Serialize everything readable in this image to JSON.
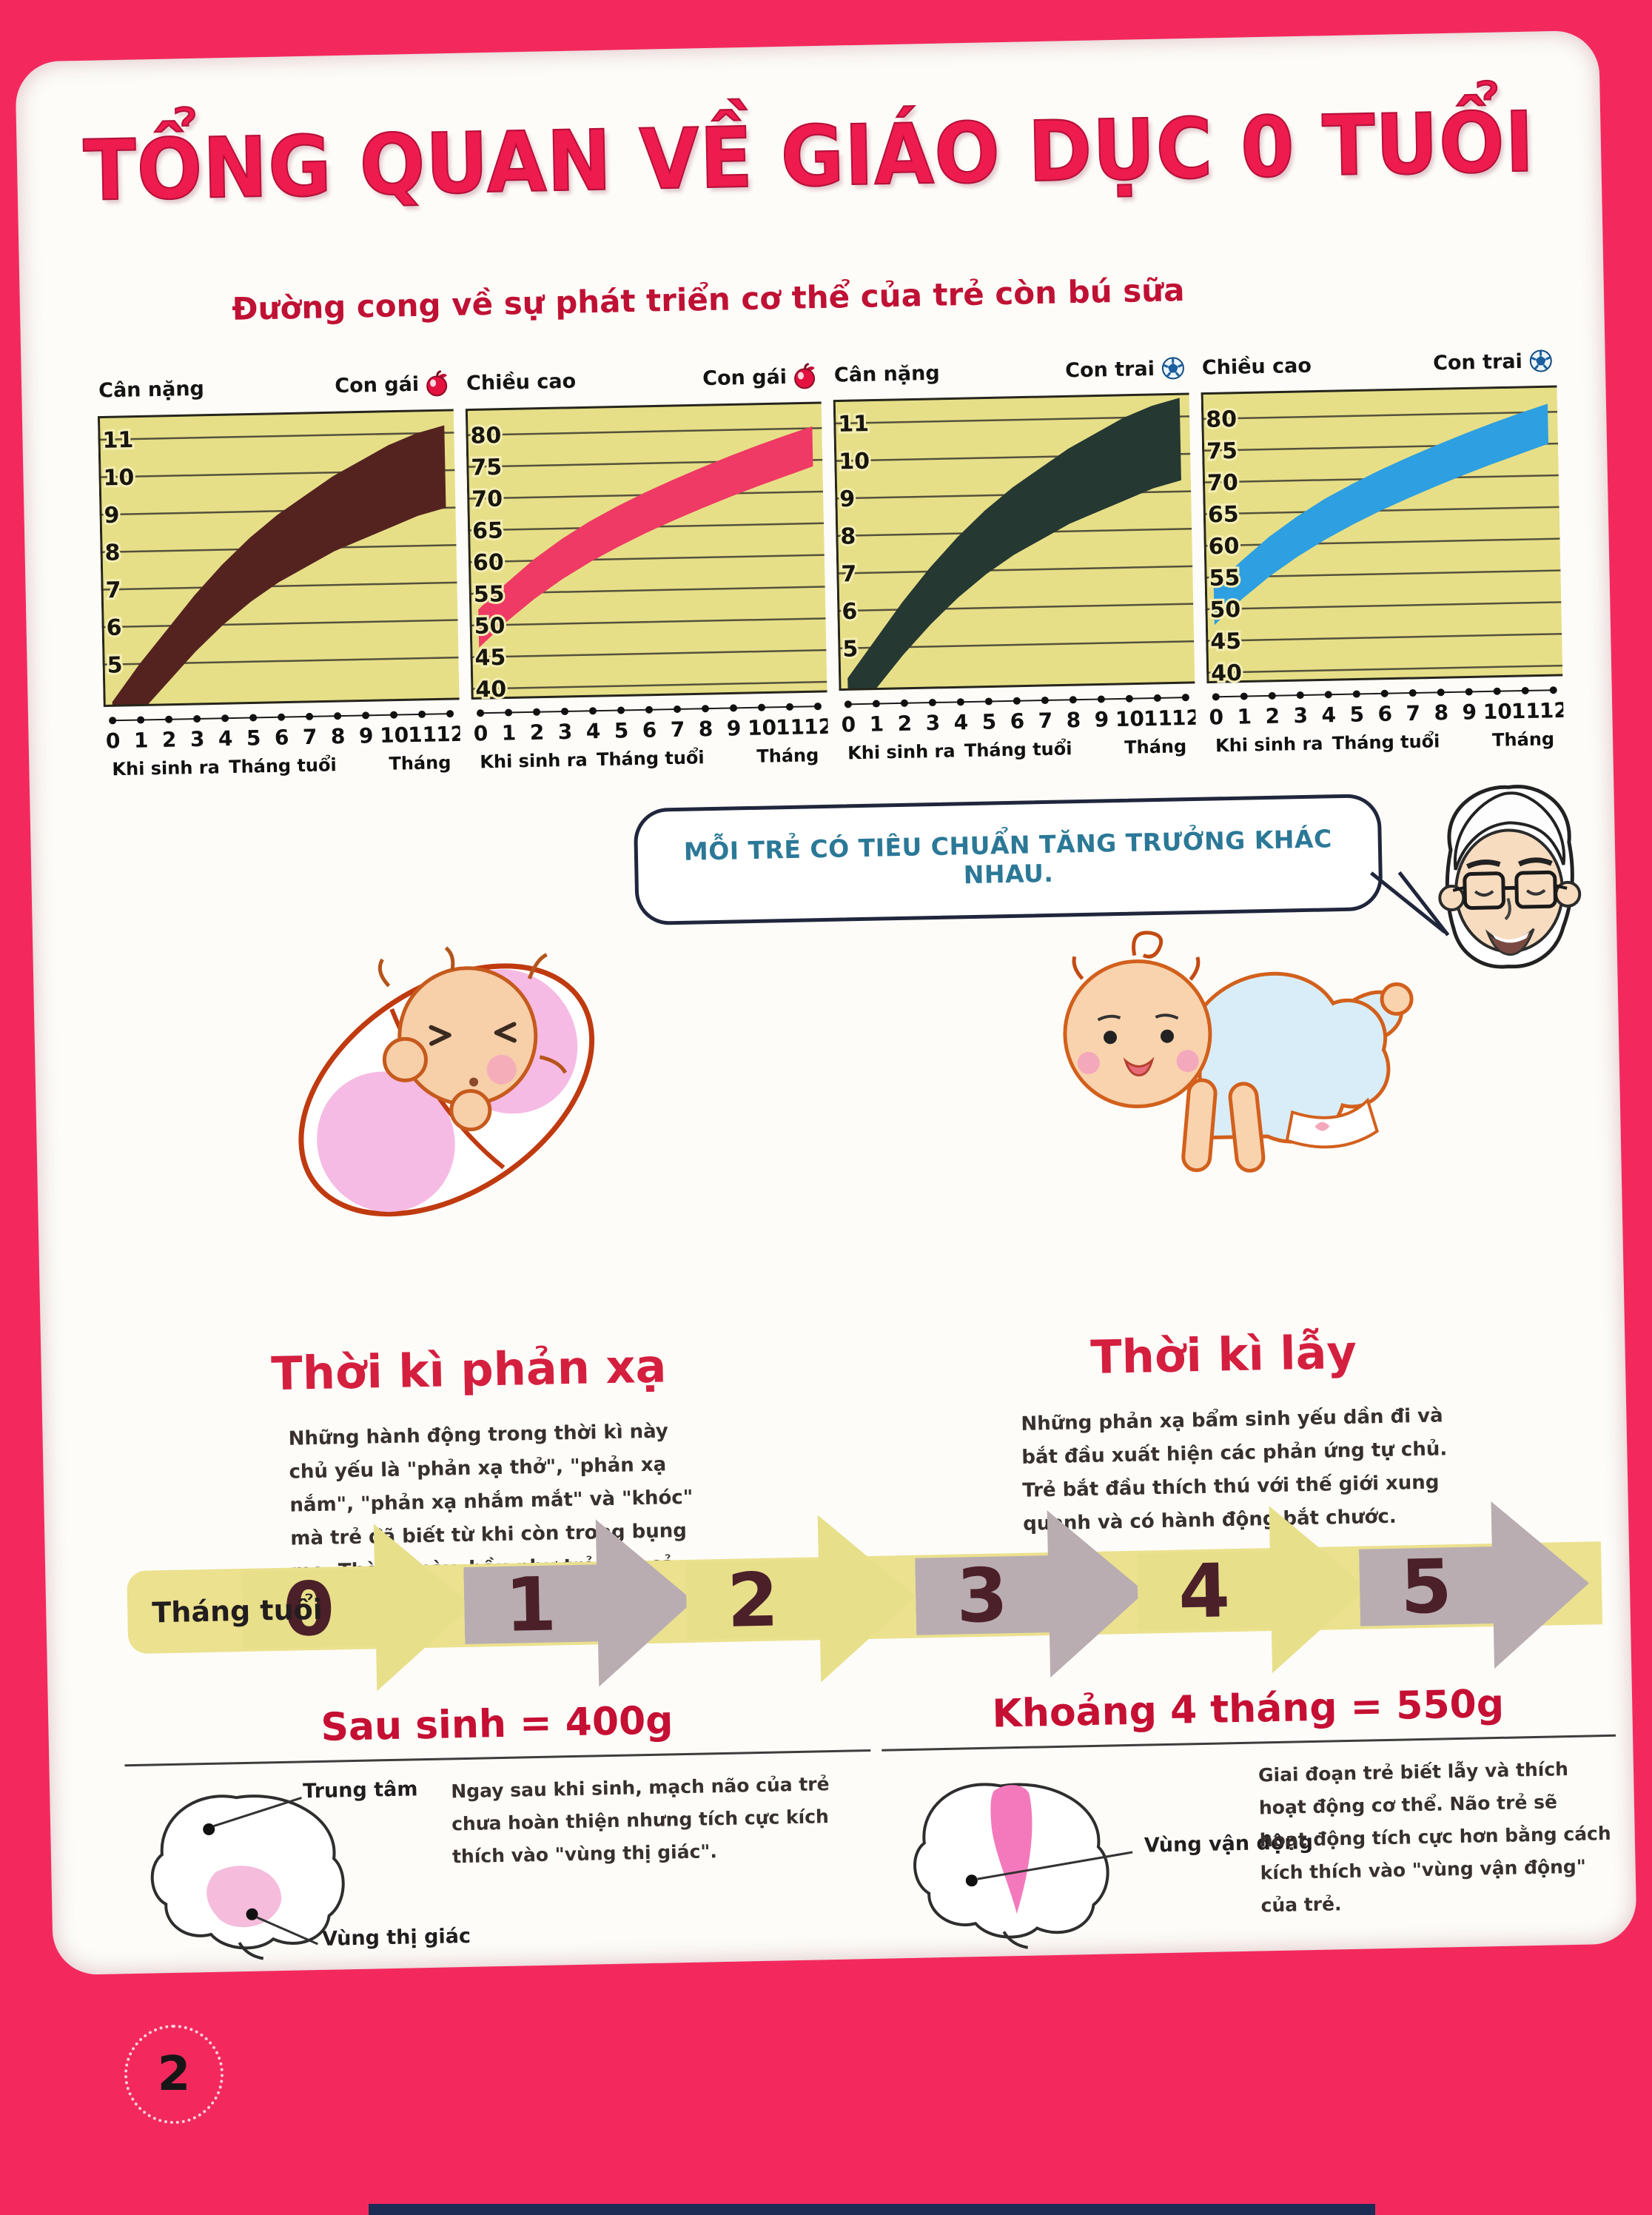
{
  "page": {
    "title": "TỔNG QUAN VỀ GIÁO DỤC 0 TUỔI",
    "page_number": "2"
  },
  "charts_section": {
    "subtitle": "Đường cong về sự phát triển cơ thể của trẻ còn bú sữa",
    "axis": {
      "ticks": [
        0,
        1,
        2,
        3,
        4,
        5,
        6,
        7,
        8,
        9,
        10,
        11,
        12
      ],
      "birth_label": "Khi sinh ra",
      "months_label": "Tháng tuổi",
      "month_label": "Tháng"
    }
  },
  "chart_data": [
    {
      "type": "area",
      "slug": "weight-girl",
      "metric_label": "Cân nặng",
      "group_label": "Con gái",
      "icon": "apple-icon",
      "band_color": "#54231f",
      "x": [
        0,
        1,
        2,
        3,
        4,
        5,
        6,
        7,
        8,
        9,
        10,
        11,
        12
      ],
      "ylim": [
        3.9,
        11.6
      ],
      "yticks": [
        5,
        6,
        7,
        8,
        9,
        10,
        11
      ],
      "band_lower": [
        2.9,
        3.7,
        4.5,
        5.3,
        6.0,
        6.6,
        7.1,
        7.5,
        7.9,
        8.2,
        8.5,
        8.8,
        9.0
      ],
      "band_upper": [
        4.0,
        5.0,
        5.9,
        6.8,
        7.6,
        8.3,
        8.9,
        9.4,
        9.9,
        10.3,
        10.7,
        11.0,
        11.2
      ]
    },
    {
      "type": "area",
      "slug": "height-girl",
      "metric_label": "Chiều cao",
      "group_label": "Con gái",
      "icon": "apple-icon",
      "band_color": "#ee3a64",
      "x": [
        0,
        1,
        2,
        3,
        4,
        5,
        6,
        7,
        8,
        9,
        10,
        11,
        12
      ],
      "ylim": [
        38.5,
        84
      ],
      "yticks": [
        40,
        45,
        50,
        55,
        60,
        65,
        70,
        75,
        80
      ],
      "band_lower": [
        46.5,
        50.5,
        54,
        57,
        59.6,
        61.9,
        64,
        65.9,
        67.7,
        69.4,
        71,
        72.5,
        74
      ],
      "band_upper": [
        52.5,
        56.5,
        60.2,
        63.3,
        66,
        68.3,
        70.4,
        72.3,
        74.1,
        75.8,
        77.4,
        78.9,
        80.3
      ]
    },
    {
      "type": "area",
      "slug": "weight-boy",
      "metric_label": "Cân nặng",
      "group_label": "Con trai",
      "icon": "soccer-ball-icon",
      "band_color": "#263832",
      "x": [
        0,
        1,
        2,
        3,
        4,
        5,
        6,
        7,
        8,
        9,
        10,
        11,
        12
      ],
      "ylim": [
        3.9,
        11.6
      ],
      "yticks": [
        5,
        6,
        7,
        8,
        9,
        10,
        11
      ],
      "band_lower": [
        3.0,
        3.9,
        4.8,
        5.6,
        6.3,
        6.9,
        7.4,
        7.8,
        8.2,
        8.5,
        8.8,
        9.1,
        9.3
      ],
      "band_upper": [
        4.2,
        5.2,
        6.2,
        7.1,
        7.9,
        8.6,
        9.2,
        9.7,
        10.2,
        10.6,
        11.0,
        11.3,
        11.5
      ]
    },
    {
      "type": "area",
      "slug": "height-boy",
      "metric_label": "Chiều cao",
      "group_label": "Con trai",
      "icon": "soccer-ball-icon",
      "band_color": "#2e9fe0",
      "x": [
        0,
        1,
        2,
        3,
        4,
        5,
        6,
        7,
        8,
        9,
        10,
        11,
        12
      ],
      "ylim": [
        38.5,
        84
      ],
      "yticks": [
        40,
        45,
        50,
        55,
        60,
        65,
        70,
        75,
        80
      ],
      "band_lower": [
        47.5,
        51.5,
        55,
        58,
        60.6,
        62.9,
        65,
        66.9,
        68.7,
        70.4,
        72,
        73.5,
        75
      ],
      "band_upper": [
        53.5,
        57.5,
        61.2,
        64.3,
        67,
        69.3,
        71.4,
        73.3,
        75.1,
        76.8,
        78.4,
        79.9,
        81.3
      ]
    }
  ],
  "speech_bubble": {
    "text": "MỖI TRẺ CÓ TIÊU CHUẨN TĂNG TRƯỞNG KHÁC NHAU."
  },
  "periods": [
    {
      "title": "Thời kì phản xạ",
      "body": "Những hành động trong thời kì này chủ yếu là \"phản xạ thở\", \"phản xạ nắm\", \"phản xạ nhắm mắt\" và \"khóc\" mà trẻ đã biết từ khi còn trong bụng mẹ. Thời kì này, hầu như trẻ ngủ cả ngày."
    },
    {
      "title": "Thời kì lẫy",
      "body": "Những phản xạ bẩm sinh yếu dần đi và bắt đầu xuất hiện các phản ứng tự chủ. Trẻ bắt đầu thích thú với thế giới xung quanh và có hành động bắt chước."
    }
  ],
  "timeline": {
    "label": "Tháng tuổi",
    "months": [
      "0",
      "1",
      "2",
      "3",
      "4",
      "5"
    ],
    "arrow_colors": {
      "yellow": "#e8df8a",
      "gray": "#b9adb2"
    }
  },
  "milestones": [
    {
      "heading": "Sau sinh = 400g",
      "brain_labels": [
        "Trung tâm",
        "Vùng thị giác"
      ],
      "body": "Ngay sau khi sinh, mạch não của trẻ chưa hoàn thiện nhưng tích cực kích thích vào \"vùng thị giác\"."
    },
    {
      "heading": "Khoảng 4 tháng = 550g",
      "brain_labels": [
        "Vùng vận động"
      ],
      "body": "Giai đoạn trẻ biết lẫy và thích hoạt động cơ thể. Não trẻ sẽ hoạt động tích cực hơn bằng cách kích thích vào \"vùng vận động\" của trẻ."
    }
  ],
  "colors": {
    "background_pink": "#f3295e",
    "page_white": "#fdfcf8",
    "chart_bg_yellow": "#e7df88",
    "title_red": "#ee1b4e",
    "heading_red": "#d41f3f",
    "milestone_red": "#c50f33",
    "speech_teal": "#2b7897",
    "timeline_number_maroon": "#4b2029",
    "bottom_bar_navy": "#1c2c55"
  }
}
